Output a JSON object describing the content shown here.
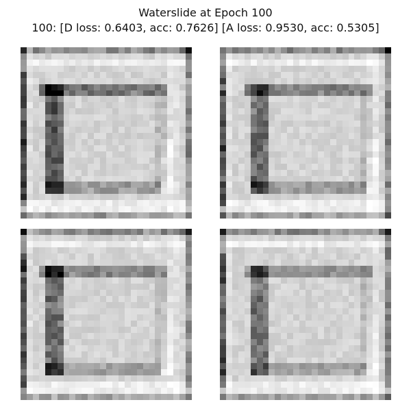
{
  "figure": {
    "title_line_1": "Waterslide at Epoch 100",
    "title_line_2": "100: [D loss: 0.6403, acc: 0.7626]  [A loss: 0.9530, acc: 0.5305]"
  },
  "samples": [
    {
      "label": ""
    },
    {
      "label": ""
    },
    {
      "label": ""
    },
    {
      "label": ""
    }
  ]
}
